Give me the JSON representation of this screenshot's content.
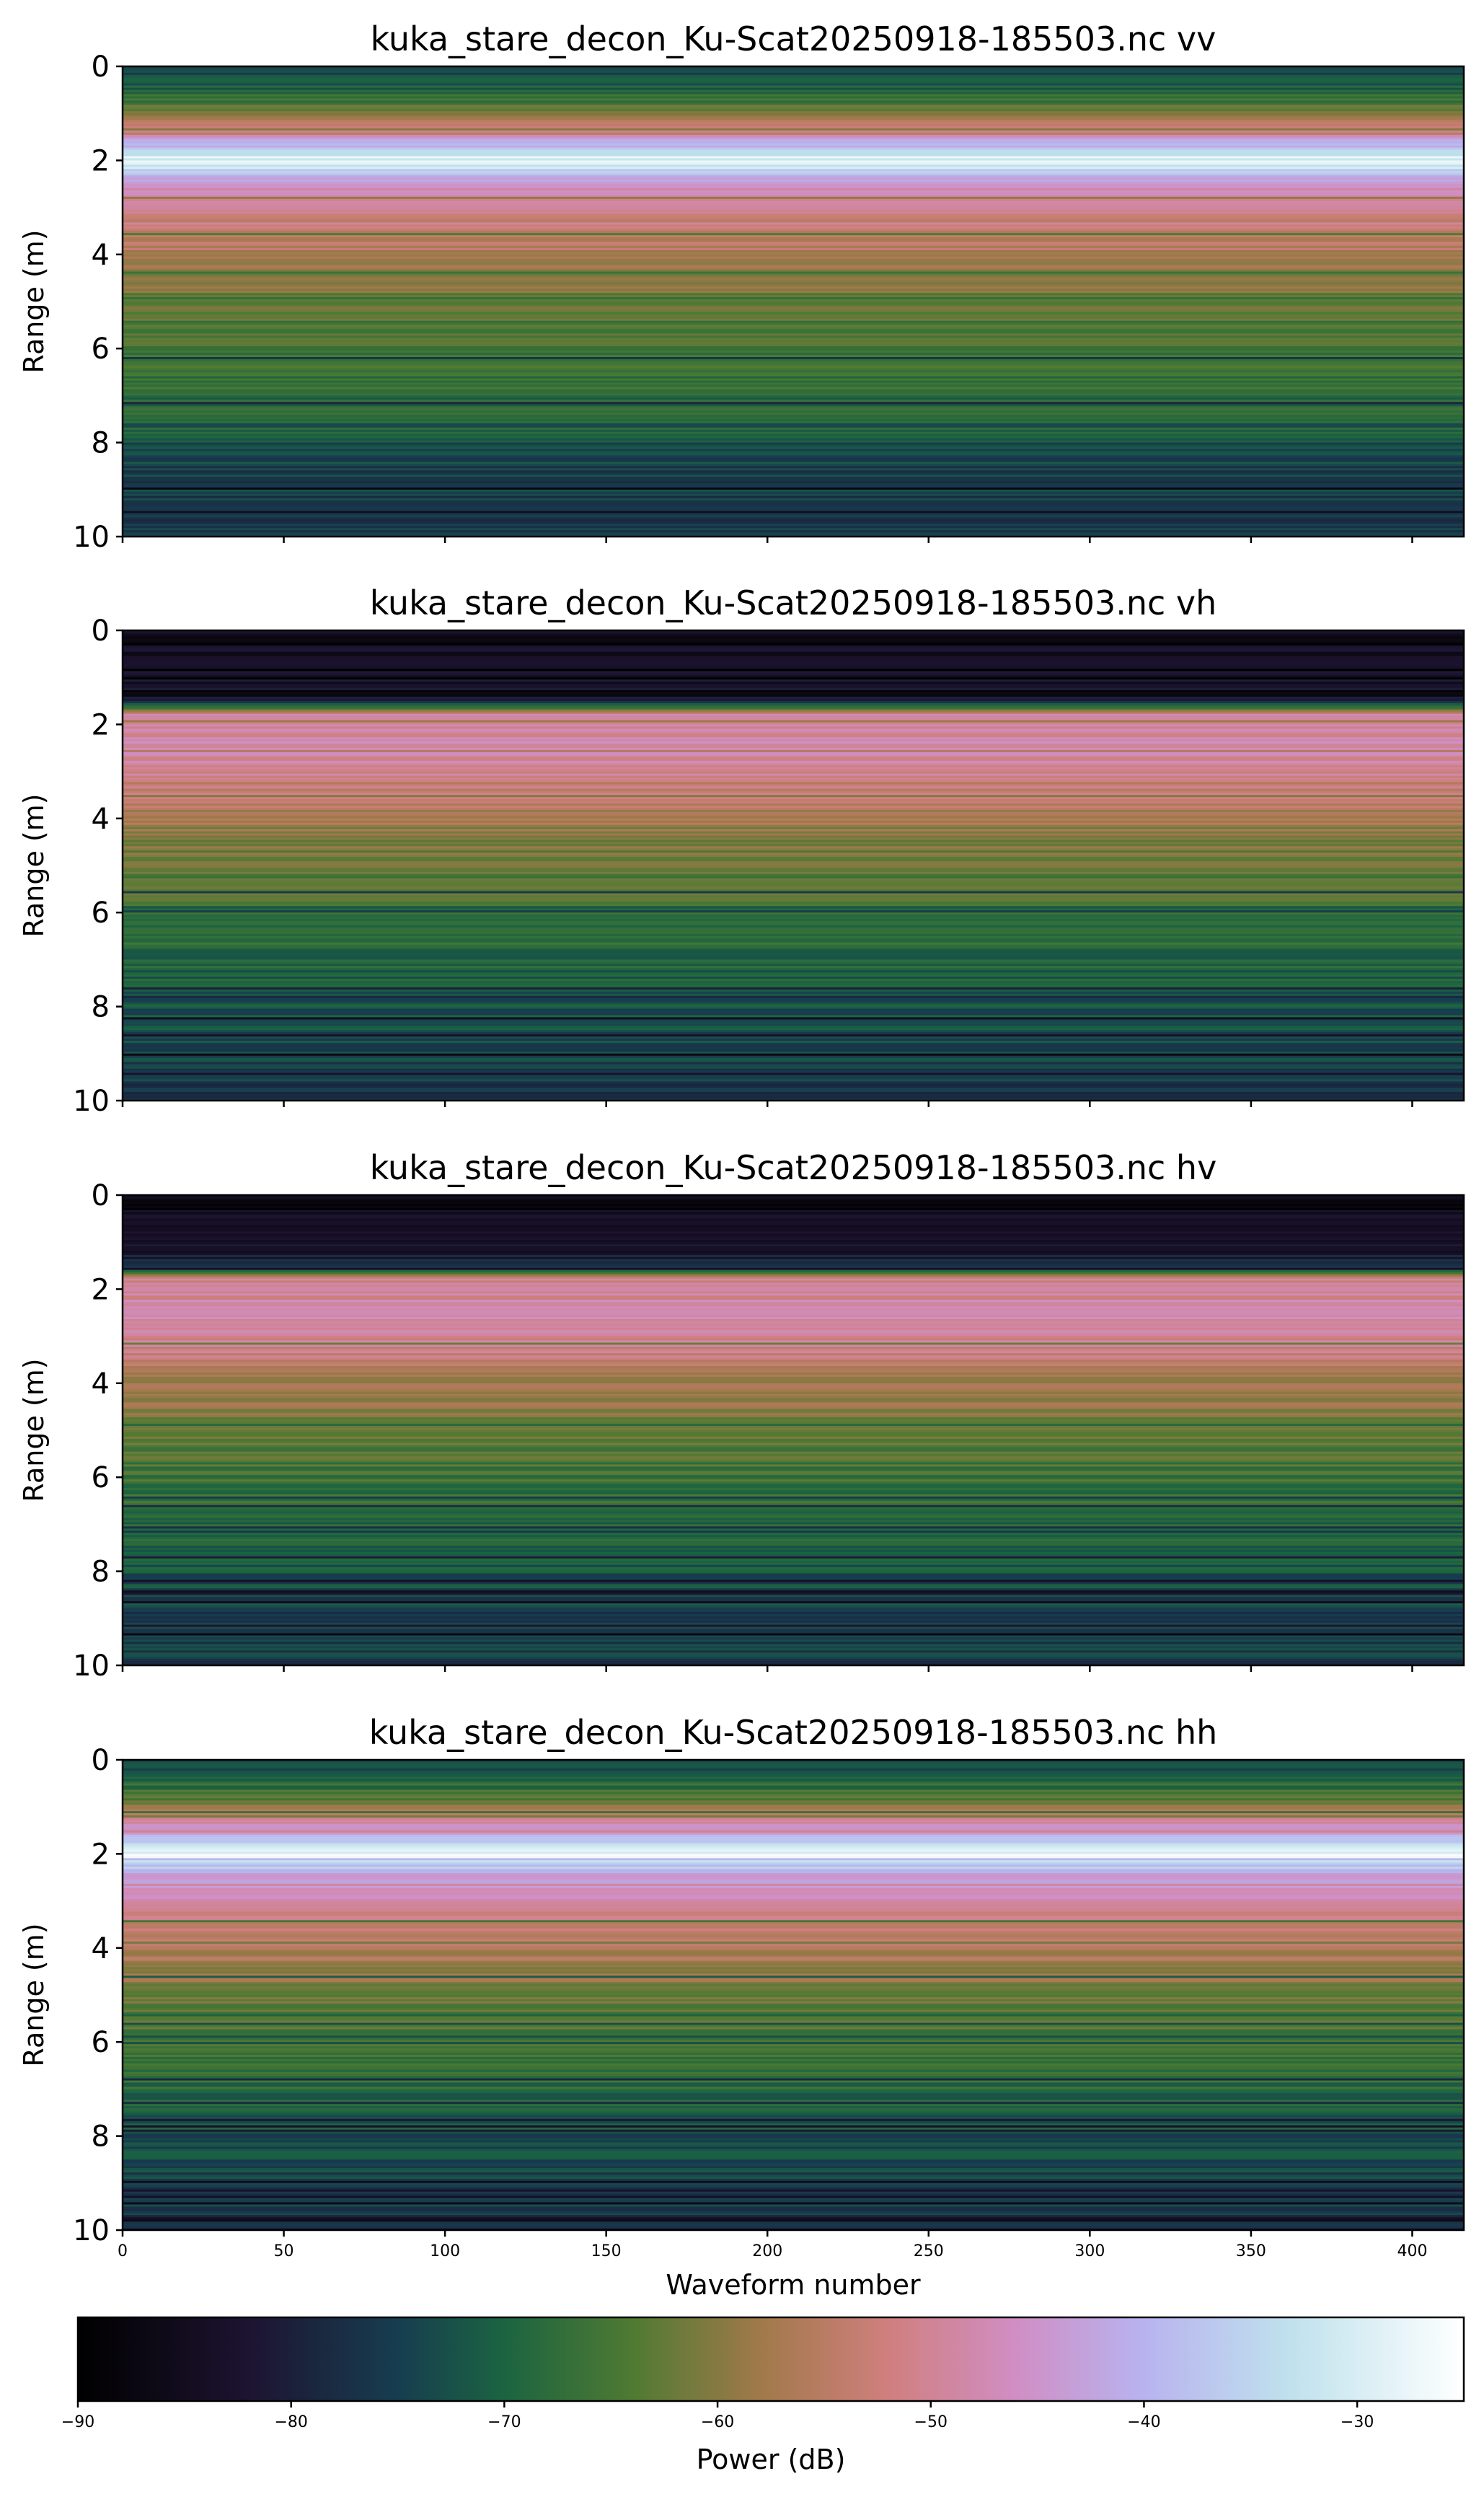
{
  "chart_data": [
    {
      "type": "heatmap",
      "title": "kuka_stare_decon_Ku-Scat20250918-185503.nc vv",
      "ylabel": "Range (m)",
      "xlim": [
        0,
        416
      ],
      "ylim": [
        10,
        0
      ],
      "yticks": [
        "0",
        "2",
        "4",
        "6",
        "8",
        "10"
      ],
      "range_profile_db": [
        {
          "range": 0.0,
          "power": -75
        },
        {
          "range": 0.5,
          "power": -70
        },
        {
          "range": 1.0,
          "power": -62
        },
        {
          "range": 1.5,
          "power": -45
        },
        {
          "range": 2.0,
          "power": -28
        },
        {
          "range": 2.3,
          "power": -38
        },
        {
          "range": 2.7,
          "power": -48
        },
        {
          "range": 3.2,
          "power": -52
        },
        {
          "range": 3.8,
          "power": -55
        },
        {
          "range": 4.5,
          "power": -60
        },
        {
          "range": 5.5,
          "power": -64
        },
        {
          "range": 6.5,
          "power": -66
        },
        {
          "range": 7.5,
          "power": -70
        },
        {
          "range": 8.5,
          "power": -74
        },
        {
          "range": 9.5,
          "power": -76
        },
        {
          "range": 10.0,
          "power": -77
        }
      ]
    },
    {
      "type": "heatmap",
      "title": "kuka_stare_decon_Ku-Scat20250918-185503.nc vh",
      "ylabel": "Range (m)",
      "xlim": [
        0,
        416
      ],
      "ylim": [
        10,
        0
      ],
      "yticks": [
        "0",
        "2",
        "4",
        "6",
        "8",
        "10"
      ],
      "range_profile_db": [
        {
          "range": 0.0,
          "power": -85
        },
        {
          "range": 1.0,
          "power": -84
        },
        {
          "range": 1.5,
          "power": -78
        },
        {
          "range": 1.8,
          "power": -50
        },
        {
          "range": 2.5,
          "power": -48
        },
        {
          "range": 3.2,
          "power": -52
        },
        {
          "range": 4.0,
          "power": -58
        },
        {
          "range": 5.0,
          "power": -63
        },
        {
          "range": 6.0,
          "power": -66
        },
        {
          "range": 7.0,
          "power": -69
        },
        {
          "range": 8.0,
          "power": -72
        },
        {
          "range": 9.0,
          "power": -75
        },
        {
          "range": 10.0,
          "power": -76
        }
      ]
    },
    {
      "type": "heatmap",
      "title": "kuka_stare_decon_Ku-Scat20250918-185503.nc hv",
      "ylabel": "Range (m)",
      "xlim": [
        0,
        416
      ],
      "ylim": [
        10,
        0
      ],
      "yticks": [
        "0",
        "2",
        "4",
        "6",
        "8",
        "10"
      ],
      "range_profile_db": [
        {
          "range": 0.0,
          "power": -86
        },
        {
          "range": 1.0,
          "power": -85
        },
        {
          "range": 1.5,
          "power": -78
        },
        {
          "range": 1.8,
          "power": -50
        },
        {
          "range": 2.5,
          "power": -48
        },
        {
          "range": 3.2,
          "power": -51
        },
        {
          "range": 4.0,
          "power": -57
        },
        {
          "range": 5.0,
          "power": -63
        },
        {
          "range": 6.0,
          "power": -66
        },
        {
          "range": 7.0,
          "power": -69
        },
        {
          "range": 8.0,
          "power": -72
        },
        {
          "range": 9.0,
          "power": -75
        },
        {
          "range": 10.0,
          "power": -76
        }
      ]
    },
    {
      "type": "heatmap",
      "title": "kuka_stare_decon_Ku-Scat20250918-185503.nc hh",
      "ylabel": "Range (m)",
      "xlabel": "Waveform number",
      "xlim": [
        0,
        416
      ],
      "ylim": [
        10,
        0
      ],
      "xticks": [
        "0",
        "50",
        "100",
        "150",
        "200",
        "250",
        "300",
        "350",
        "400"
      ],
      "yticks": [
        "0",
        "2",
        "4",
        "6",
        "8",
        "10"
      ],
      "range_profile_db": [
        {
          "range": 0.0,
          "power": -74
        },
        {
          "range": 0.5,
          "power": -69
        },
        {
          "range": 1.0,
          "power": -61
        },
        {
          "range": 1.5,
          "power": -44
        },
        {
          "range": 2.0,
          "power": -28
        },
        {
          "range": 2.3,
          "power": -38
        },
        {
          "range": 2.7,
          "power": -47
        },
        {
          "range": 3.2,
          "power": -51
        },
        {
          "range": 3.8,
          "power": -55
        },
        {
          "range": 4.5,
          "power": -59
        },
        {
          "range": 5.5,
          "power": -64
        },
        {
          "range": 6.5,
          "power": -67
        },
        {
          "range": 7.5,
          "power": -71
        },
        {
          "range": 8.5,
          "power": -74
        },
        {
          "range": 9.5,
          "power": -76
        },
        {
          "range": 10.0,
          "power": -77
        }
      ]
    }
  ],
  "colorbar": {
    "label": "Power (dB)",
    "range": [
      -90,
      -25
    ],
    "ticks": [
      "−90",
      "−80",
      "−70",
      "−60",
      "−50",
      "−40",
      "−30"
    ],
    "tick_values": [
      -90,
      -80,
      -70,
      -60,
      -50,
      -40,
      -30
    ],
    "colormap": "cubehelix",
    "colormap_stops": [
      {
        "value": -90,
        "color": "#000000"
      },
      {
        "value": -82,
        "color": "#1d1431"
      },
      {
        "value": -75,
        "color": "#173d50"
      },
      {
        "value": -70,
        "color": "#1b6441"
      },
      {
        "value": -64,
        "color": "#4f7a32"
      },
      {
        "value": -58,
        "color": "#a1794a"
      },
      {
        "value": -52,
        "color": "#d07f7e"
      },
      {
        "value": -46,
        "color": "#d08ec4"
      },
      {
        "value": -40,
        "color": "#b8b3ef"
      },
      {
        "value": -33,
        "color": "#c0e2ed"
      },
      {
        "value": -25,
        "color": "#ffffff"
      }
    ]
  }
}
